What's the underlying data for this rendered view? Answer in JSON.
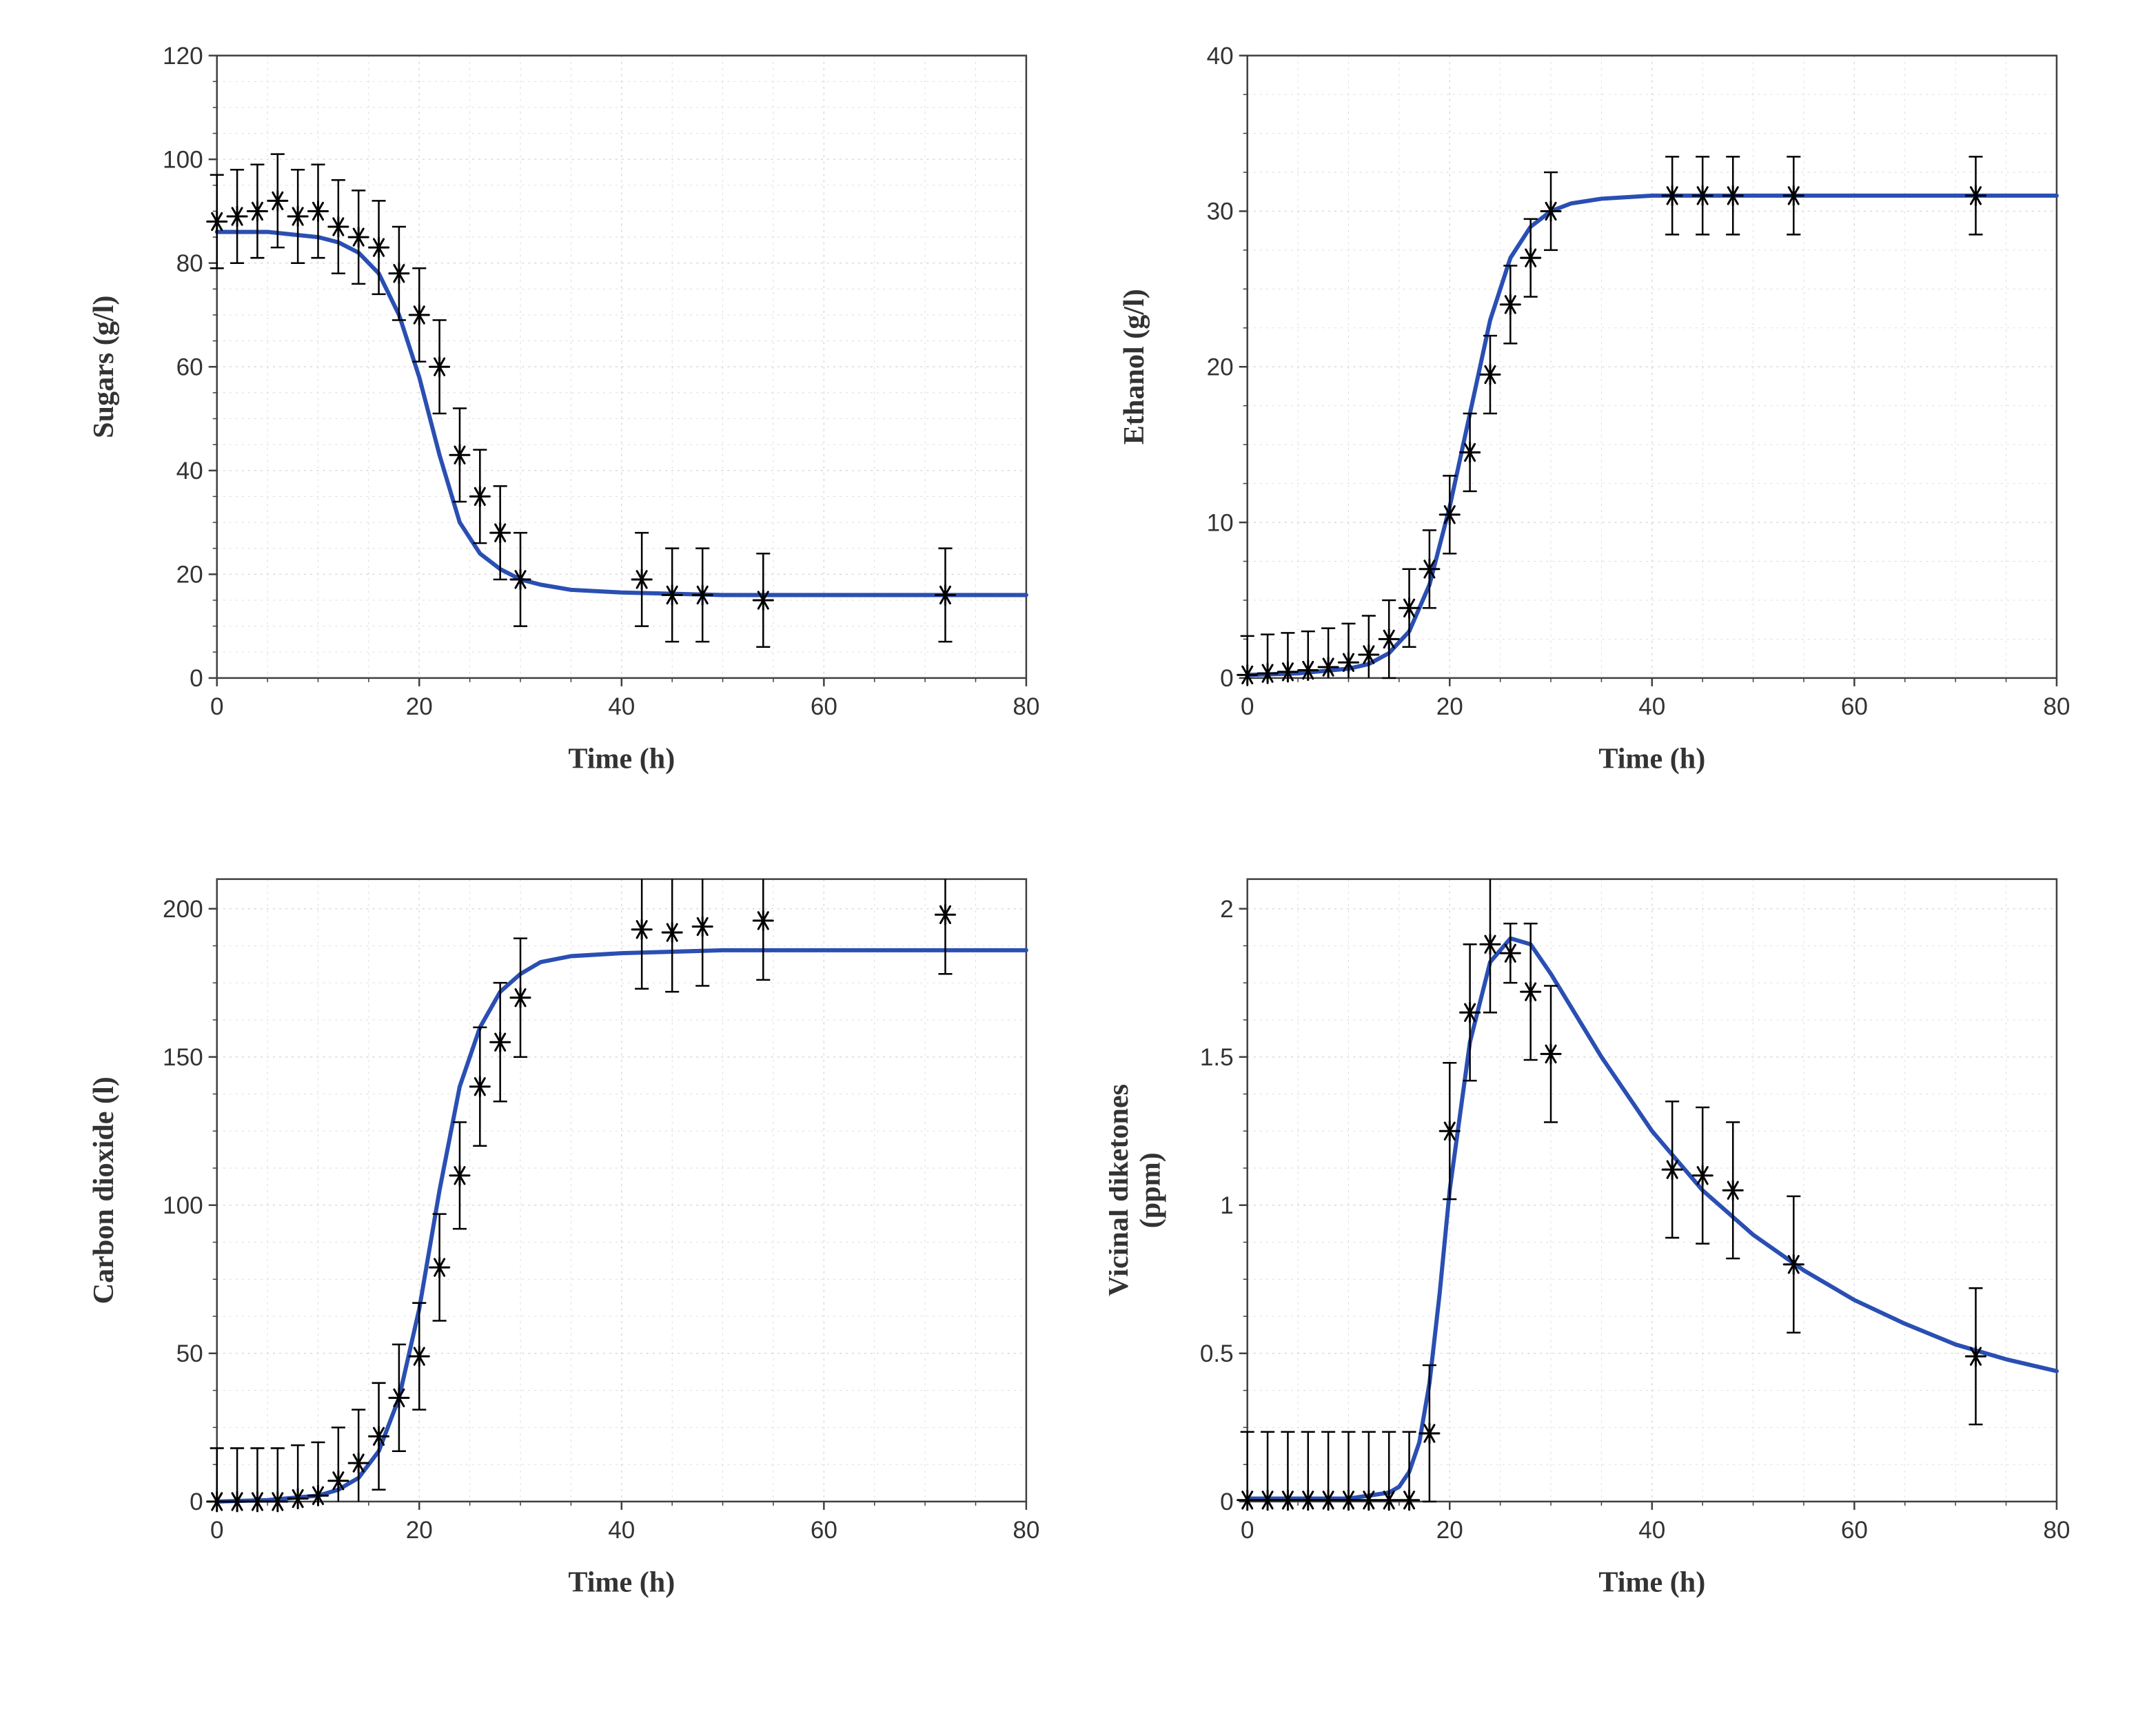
{
  "layout": {
    "rows": 2,
    "cols": 2,
    "figure_w": 3128,
    "figure_h": 2506,
    "background_color": "#ffffff"
  },
  "common": {
    "xlabel": "Time (h)",
    "xlim": [
      0,
      80
    ],
    "xtick_step": 20,
    "axis_color": "#404040",
    "grid_color": "#d9d9d9",
    "tick_color": "#404040",
    "text_color": "#333333",
    "label_fontsize": 42,
    "tick_fontsize": 35,
    "tick_fontfamily": "Arial, Helvetica, sans-serif",
    "label_fontweight": "bold",
    "label_fontfamily": "Georgia, 'Times New Roman', serif",
    "line_color": "#2a4fb3",
    "line_width": 6,
    "marker_color": "#000000",
    "marker_size": 14,
    "errorbar_color": "#000000",
    "errorbar_width": 2.5,
    "errorbar_cap": 10,
    "grid_dash": "3,6",
    "axis_width": 2.5,
    "minor_ticks": true
  },
  "panels": [
    {
      "id": "sugars",
      "ylabel": "Sugars (g/l)",
      "ylim": [
        0,
        120
      ],
      "ytick_step": 20,
      "data": {
        "x": [
          0,
          2,
          4,
          6,
          8,
          10,
          12,
          14,
          16,
          18,
          20,
          22,
          24,
          26,
          28,
          30,
          42,
          45,
          48,
          54,
          72
        ],
        "y": [
          88,
          89,
          90,
          92,
          89,
          90,
          87,
          85,
          83,
          78,
          70,
          60,
          43,
          35,
          28,
          19,
          19,
          16,
          16,
          15,
          16
        ],
        "err": [
          9,
          9,
          9,
          9,
          9,
          9,
          9,
          9,
          9,
          9,
          9,
          9,
          9,
          9,
          9,
          9,
          9,
          9,
          9,
          9,
          9
        ]
      },
      "line": {
        "x": [
          0,
          5,
          10,
          12,
          14,
          16,
          18,
          20,
          22,
          24,
          26,
          28,
          30,
          32,
          35,
          40,
          50,
          60,
          70,
          80
        ],
        "y": [
          86,
          86,
          85,
          84,
          82,
          78,
          70,
          58,
          43,
          30,
          24,
          21,
          19,
          18,
          17,
          16.5,
          16,
          16,
          16,
          16
        ]
      }
    },
    {
      "id": "ethanol",
      "ylabel": "Ethanol (g/l)",
      "ylim": [
        0,
        40
      ],
      "ytick_step": 10,
      "data": {
        "x": [
          0,
          2,
          4,
          6,
          8,
          10,
          12,
          14,
          16,
          18,
          20,
          22,
          24,
          26,
          28,
          30,
          42,
          45,
          48,
          54,
          72
        ],
        "y": [
          0.2,
          0.3,
          0.4,
          0.5,
          0.7,
          1,
          1.5,
          2.5,
          4.5,
          7,
          10.5,
          14.5,
          19.5,
          24,
          27,
          30,
          31,
          31,
          31,
          31,
          31
        ],
        "err": [
          2.5,
          2.5,
          2.5,
          2.5,
          2.5,
          2.5,
          2.5,
          2.5,
          2.5,
          2.5,
          2.5,
          2.5,
          2.5,
          2.5,
          2.5,
          2.5,
          2.5,
          2.5,
          2.5,
          2.5,
          2.5
        ]
      },
      "line": {
        "x": [
          0,
          5,
          10,
          12,
          14,
          16,
          18,
          20,
          22,
          24,
          26,
          28,
          30,
          32,
          35,
          40,
          50,
          60,
          70,
          80
        ],
        "y": [
          0.2,
          0.3,
          0.6,
          0.9,
          1.6,
          3,
          6,
          11,
          17,
          23,
          27,
          29,
          30,
          30.5,
          30.8,
          31,
          31,
          31,
          31,
          31
        ]
      }
    },
    {
      "id": "co2",
      "ylabel": "Carbon dioxide (l)",
      "ylim": [
        0,
        210
      ],
      "ytick_step": 50,
      "data": {
        "x": [
          0,
          2,
          4,
          6,
          8,
          10,
          12,
          14,
          16,
          18,
          20,
          22,
          24,
          26,
          28,
          30,
          42,
          45,
          48,
          54,
          72
        ],
        "y": [
          0,
          0,
          0,
          0,
          1,
          2,
          7,
          13,
          22,
          35,
          49,
          79,
          110,
          140,
          155,
          170,
          193,
          192,
          194,
          196,
          198
        ],
        "err": [
          18,
          18,
          18,
          18,
          18,
          18,
          18,
          18,
          18,
          18,
          18,
          18,
          18,
          20,
          20,
          20,
          20,
          20,
          20,
          20,
          20
        ]
      },
      "line": {
        "x": [
          0,
          5,
          10,
          12,
          14,
          16,
          18,
          20,
          22,
          24,
          26,
          28,
          30,
          32,
          35,
          40,
          50,
          60,
          70,
          80
        ],
        "y": [
          0,
          0.5,
          2,
          4,
          8,
          17,
          35,
          65,
          105,
          140,
          160,
          172,
          178,
          182,
          184,
          185,
          186,
          186,
          186,
          186
        ]
      }
    },
    {
      "id": "vdk",
      "ylabel": "Vicinal diketones\n(ppm)",
      "ylim": [
        0,
        2.1
      ],
      "ytick_step": 0.5,
      "data": {
        "x": [
          0,
          2,
          4,
          6,
          8,
          10,
          12,
          14,
          16,
          18,
          20,
          22,
          24,
          26,
          28,
          30,
          42,
          45,
          48,
          54,
          72
        ],
        "y": [
          0.005,
          0.005,
          0.005,
          0.005,
          0.005,
          0.005,
          0.005,
          0.005,
          0.005,
          0.23,
          1.25,
          1.65,
          1.88,
          1.85,
          1.72,
          1.51,
          1.12,
          1.1,
          1.05,
          0.8,
          0.49
        ],
        "err": [
          0.23,
          0.23,
          0.23,
          0.23,
          0.23,
          0.23,
          0.23,
          0.23,
          0.23,
          0.23,
          0.23,
          0.23,
          0.23,
          0.1,
          0.23,
          0.23,
          0.23,
          0.23,
          0.23,
          0.23,
          0.23
        ]
      },
      "line": {
        "x": [
          0,
          5,
          10,
          12,
          14,
          15,
          16,
          17,
          18,
          19,
          20,
          22,
          24,
          26,
          28,
          30,
          35,
          40,
          45,
          50,
          55,
          60,
          65,
          70,
          75,
          80
        ],
        "y": [
          0.01,
          0.01,
          0.01,
          0.02,
          0.03,
          0.05,
          0.1,
          0.2,
          0.4,
          0.7,
          1.05,
          1.55,
          1.82,
          1.9,
          1.88,
          1.78,
          1.5,
          1.25,
          1.05,
          0.9,
          0.78,
          0.68,
          0.6,
          0.53,
          0.48,
          0.44
        ]
      }
    }
  ]
}
